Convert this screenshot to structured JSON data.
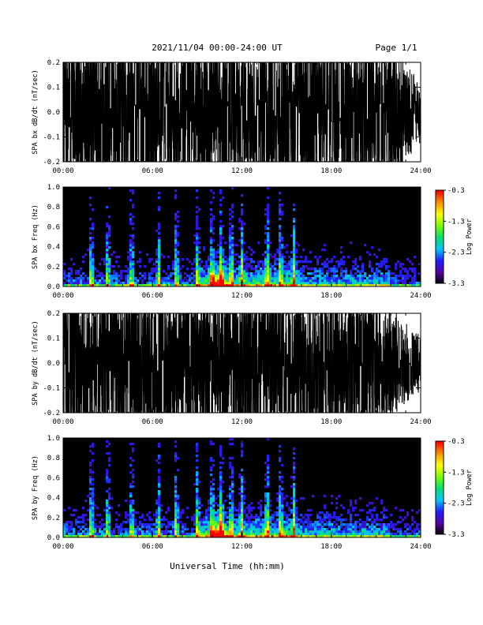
{
  "header": {
    "title": "2021/11/04  00:00-24:00 UT",
    "page": "Page 1/1"
  },
  "footer": {
    "xlabel": "Universal Time (hh:mm)"
  },
  "colors": {
    "trace": "#000000",
    "spectrogram_background": "#000000",
    "colormap": [
      "#000000",
      "#5a00a0",
      "#1e1eff",
      "#00c8ff",
      "#00e070",
      "#7cff00",
      "#ffff00",
      "#ff9000",
      "#ff0000"
    ]
  },
  "chart_data": [
    {
      "type": "line",
      "id": "bx-waveform",
      "ylabel": "SPA bx dB/dt (nT/sec)",
      "xlim": [
        0,
        24
      ],
      "ylim": [
        -0.2,
        0.2
      ],
      "x_ticks": [
        "00:00",
        "06:00",
        "12:00",
        "18:00",
        "24:00"
      ],
      "y_ticks": [
        "-0.2",
        "-0.1",
        "0.0",
        "0.1",
        "0.2"
      ],
      "series": [
        {
          "x_hours": [
            0,
            1,
            2,
            3,
            4,
            5,
            6,
            7,
            8,
            9,
            10,
            11,
            12,
            13,
            14,
            15,
            16,
            17,
            18,
            19,
            20,
            21,
            22,
            23,
            24
          ],
          "amplitude_envelope": [
            0.2,
            0.2,
            0.2,
            0.2,
            0.2,
            0.2,
            0.2,
            0.2,
            0.2,
            0.2,
            0.2,
            0.2,
            0.2,
            0.2,
            0.2,
            0.2,
            0.2,
            0.2,
            0.2,
            0.2,
            0.2,
            0.2,
            0.2,
            0.12,
            0.08
          ]
        }
      ]
    },
    {
      "type": "heatmap",
      "id": "bx-spectrogram",
      "ylabel": "SPA bx Freq (Hz)",
      "colorbar_label": "Log Power",
      "xlim": [
        0,
        24
      ],
      "ylim": [
        0,
        1
      ],
      "clim": [
        -3.3,
        -0.3
      ],
      "x_ticks": [
        "00:00",
        "06:00",
        "12:00",
        "18:00",
        "24:00"
      ],
      "y_ticks": [
        "0.0",
        "0.2",
        "0.4",
        "0.6",
        "0.8",
        "1.0"
      ],
      "colorbar_ticks": [
        "-0.3",
        "-1.3",
        "-2.3",
        "-3.3"
      ],
      "activity_bursts_hours": [
        1.9,
        3.0,
        4.6,
        6.4,
        7.6,
        9.0,
        10.0,
        10.6,
        11.3,
        12.0,
        13.7,
        14.6,
        15.5
      ],
      "peak_power_hours": [
        10.3,
        10.6
      ]
    },
    {
      "type": "line",
      "id": "by-waveform",
      "ylabel": "SPA by dB/dt (nT/sec)",
      "xlim": [
        0,
        24
      ],
      "ylim": [
        -0.2,
        0.2
      ],
      "x_ticks": [
        "00:00",
        "06:00",
        "12:00",
        "18:00",
        "24:00"
      ],
      "y_ticks": [
        "-0.2",
        "-0.1",
        "0.0",
        "0.1",
        "0.2"
      ],
      "series": [
        {
          "x_hours": [
            0,
            1,
            2,
            3,
            4,
            5,
            6,
            7,
            8,
            9,
            10,
            11,
            12,
            13,
            14,
            15,
            16,
            17,
            18,
            19,
            20,
            21,
            22,
            23,
            24
          ],
          "amplitude_envelope": [
            0.2,
            0.2,
            0.2,
            0.2,
            0.2,
            0.2,
            0.2,
            0.2,
            0.2,
            0.2,
            0.2,
            0.2,
            0.2,
            0.2,
            0.2,
            0.2,
            0.2,
            0.2,
            0.2,
            0.2,
            0.2,
            0.18,
            0.14,
            0.1,
            0.07
          ]
        }
      ]
    },
    {
      "type": "heatmap",
      "id": "by-spectrogram",
      "ylabel": "SPA by Freq (Hz)",
      "colorbar_label": "Log Power",
      "xlim": [
        0,
        24
      ],
      "ylim": [
        0,
        1
      ],
      "clim": [
        -3.3,
        -0.3
      ],
      "x_ticks": [
        "00:00",
        "06:00",
        "12:00",
        "18:00",
        "24:00"
      ],
      "y_ticks": [
        "0.0",
        "0.2",
        "0.4",
        "0.6",
        "0.8",
        "1.0"
      ],
      "colorbar_ticks": [
        "-0.3",
        "-1.3",
        "-2.3",
        "-3.3"
      ],
      "activity_bursts_hours": [
        1.9,
        3.0,
        4.6,
        6.4,
        7.6,
        9.0,
        10.0,
        10.6,
        11.3,
        12.0,
        13.7,
        14.6,
        15.5
      ],
      "peak_power_hours": [
        10.3,
        10.6
      ]
    }
  ]
}
